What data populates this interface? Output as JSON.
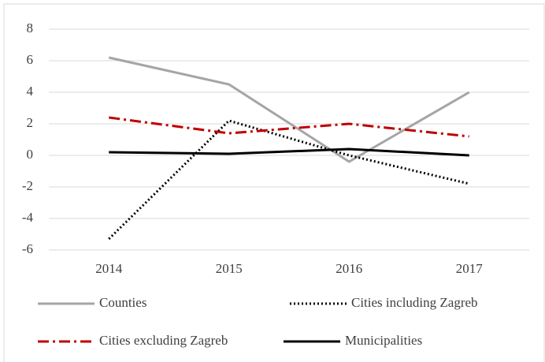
{
  "chart_data": {
    "type": "line",
    "categories": [
      "2014",
      "2015",
      "2016",
      "2017"
    ],
    "series": [
      {
        "name": "Counties",
        "color": "#a5a5a5",
        "line_style": "solid",
        "values": [
          6.2,
          4.5,
          -0.4,
          4.0
        ]
      },
      {
        "name": "Cities including Zagreb",
        "color": "#000000",
        "line_style": "dotted",
        "values": [
          -5.3,
          2.2,
          0.0,
          -1.8
        ]
      },
      {
        "name": "Cities excluding Zagreb",
        "color": "#c00000",
        "line_style": "dashdot",
        "values": [
          2.4,
          1.4,
          2.0,
          1.2
        ]
      },
      {
        "name": "Municipalities",
        "color": "#000000",
        "line_style": "solid",
        "values": [
          0.2,
          0.1,
          0.4,
          0.0
        ]
      }
    ],
    "ylim": [
      -6,
      8
    ],
    "yticks": [
      -6,
      -4,
      -2,
      0,
      2,
      4,
      6,
      8
    ],
    "grid": true,
    "legend": "bottom"
  }
}
